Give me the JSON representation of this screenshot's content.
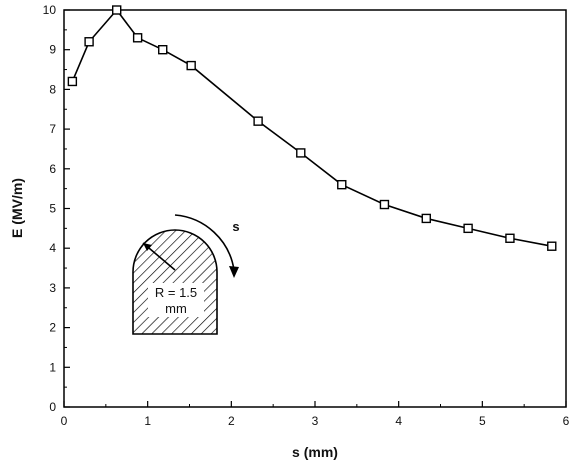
{
  "chart_data": {
    "type": "line",
    "title": "",
    "xlabel": "s (mm)",
    "ylabel": "E (MV/m)",
    "xlim": [
      0,
      6
    ],
    "ylim": [
      0,
      10
    ],
    "xticks": [
      0,
      1,
      2,
      3,
      4,
      5,
      6
    ],
    "yticks": [
      0,
      1,
      2,
      3,
      4,
      5,
      6,
      7,
      8,
      9,
      10
    ],
    "grid": false,
    "marker": "open-square",
    "series": [
      {
        "x": [
          0.1,
          0.3,
          0.63,
          0.88,
          1.18,
          1.52,
          2.32,
          2.83,
          3.32,
          3.83,
          4.33,
          4.83,
          5.33,
          5.83
        ],
        "y": [
          8.2,
          9.2,
          10.0,
          9.3,
          9.0,
          8.6,
          7.2,
          6.4,
          5.6,
          5.1,
          4.75,
          4.5,
          4.25,
          4.05
        ]
      }
    ],
    "inset": {
      "radius_label_line1": "R = 1.5",
      "radius_label_line2": "mm",
      "arc_label": "s"
    }
  }
}
